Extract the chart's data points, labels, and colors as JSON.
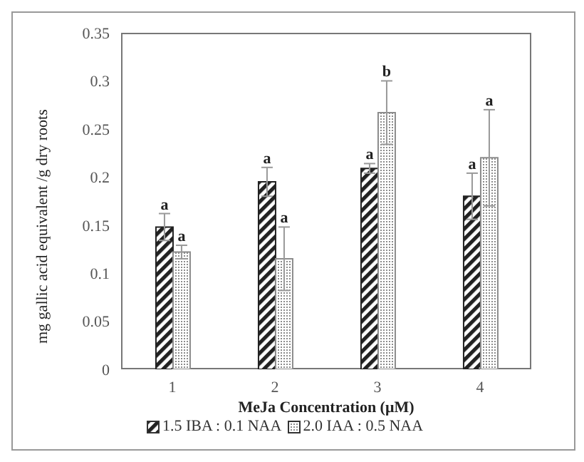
{
  "chart_data": {
    "type": "bar",
    "xlabel": "MeJa Concentration (μM)",
    "ylabel": "mg gallic acid equivalent /g dry roots",
    "categories": [
      "1",
      "2",
      "3",
      "4"
    ],
    "series": [
      {
        "name": "1.5 IBA : 0.1 NAA",
        "color": "#222222",
        "values": [
          0.148,
          0.195,
          0.209,
          0.18
        ],
        "errors": [
          0.014,
          0.015,
          0.005,
          0.024
        ],
        "value_labels": [
          "a",
          "a",
          "a",
          "a"
        ]
      },
      {
        "name": "2.0 IAA : 0.5 NAA",
        "color": "#8c8c8c",
        "values": [
          0.122,
          0.115,
          0.267,
          0.22
        ],
        "errors": [
          0.007,
          0.033,
          0.033,
          0.05
        ],
        "value_labels": [
          "a",
          "a",
          "b",
          "a"
        ]
      }
    ],
    "ylim": [
      0,
      0.35
    ],
    "yticks": [
      0,
      0.05,
      0.1,
      0.15,
      0.2,
      0.25,
      0.3,
      0.35
    ],
    "grid": false,
    "legend": "bottom"
  }
}
